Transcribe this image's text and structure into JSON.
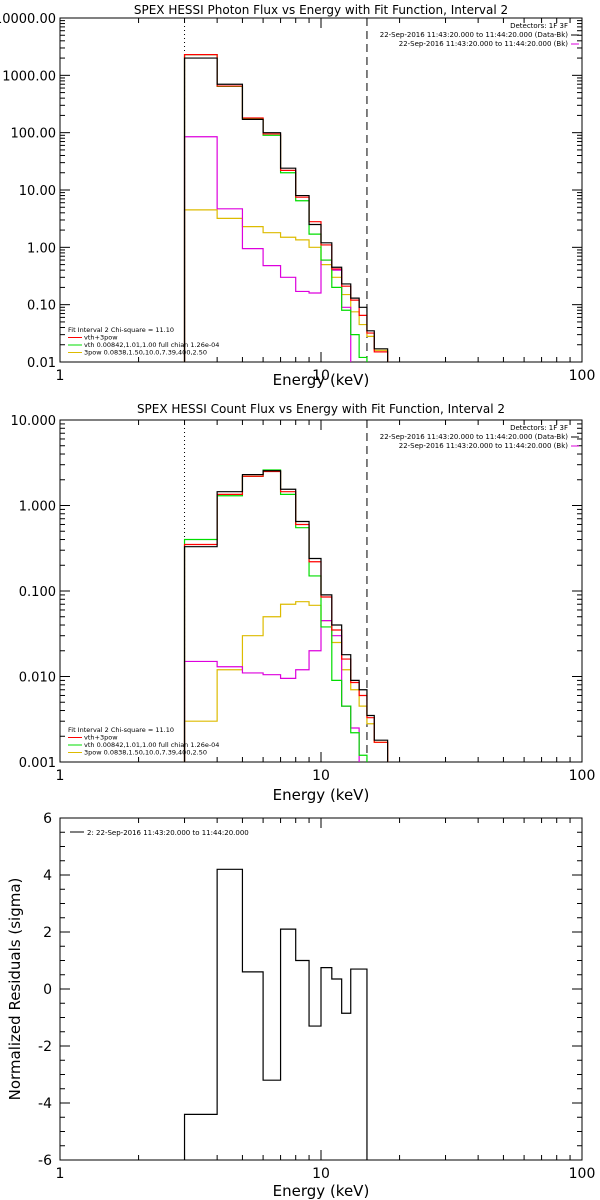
{
  "chart_data": [
    {
      "type": "line",
      "title": "SPEX HESSI Photon Flux vs Energy with Fit Function, Interval 2",
      "xlabel": "Energy (keV)",
      "ylabel": "",
      "x_scale": "log",
      "y_scale": "log",
      "xlim": [
        1,
        100
      ],
      "ylim": [
        0.01,
        10000
      ],
      "x_ticks": [
        "1",
        "10",
        "100"
      ],
      "y_ticks": [
        "0.01",
        "0.10",
        "1.00",
        "10.00",
        "100.00",
        "1000.00",
        "10000.00"
      ],
      "vlines": [
        {
          "x": 3.0,
          "style": "dotted"
        },
        {
          "x": 15.0,
          "style": "dashed"
        }
      ],
      "legend_top": [
        "Detectors: 1F 3F",
        "22-Sep-2016 11:43:20.000 to 11:44:20.000 (Data-Bk)",
        "22-Sep-2016 11:43:20.000 to 11:44:20.000 (Bk)"
      ],
      "legend_bottom": [
        "Fit Interval 2   Chi-square = 11.10",
        "vth+3pow",
        "vth 0.00842,1.01,1.00  full chian 1.26e-04",
        "3pow 0.0838,1.50,10.0,7.39,400,2.50"
      ],
      "colors": {
        "data": "#000000",
        "model": "#ff0000",
        "vth": "#00dd00",
        "pow": "#ddbb00",
        "bk": "#dd00dd"
      },
      "series": [
        {
          "name": "Data-Bk",
          "bins": [
            [
              3.0,
              4.0,
              2000
            ],
            [
              4.0,
              5.0,
              700
            ],
            [
              5.0,
              6.0,
              170
            ],
            [
              6.0,
              7.0,
              100
            ],
            [
              7.0,
              8.0,
              24
            ],
            [
              8.0,
              9.0,
              8
            ],
            [
              9.0,
              10.0,
              2.5
            ],
            [
              10.0,
              11.0,
              1.2
            ],
            [
              11.0,
              12.0,
              0.45
            ],
            [
              12.0,
              13.0,
              0.23
            ],
            [
              13.0,
              14.0,
              0.13
            ],
            [
              14.0,
              15.0,
              0.09
            ],
            [
              15.0,
              16.0,
              0.035
            ],
            [
              16.0,
              18.0,
              0.017
            ]
          ]
        },
        {
          "name": "vth+3pow",
          "bins": [
            [
              3.0,
              4.0,
              2300
            ],
            [
              4.0,
              5.0,
              650
            ],
            [
              5.0,
              6.0,
              180
            ],
            [
              6.0,
              7.0,
              95
            ],
            [
              7.0,
              8.0,
              22
            ],
            [
              8.0,
              9.0,
              7.5
            ],
            [
              9.0,
              10.0,
              2.8
            ],
            [
              10.0,
              11.0,
              1.1
            ],
            [
              11.0,
              12.0,
              0.42
            ],
            [
              12.0,
              13.0,
              0.21
            ],
            [
              13.0,
              14.0,
              0.12
            ],
            [
              14.0,
              15.0,
              0.065
            ],
            [
              15.0,
              16.0,
              0.032
            ],
            [
              16.0,
              18.0,
              0.015
            ]
          ]
        },
        {
          "name": "vth",
          "bins": [
            [
              3.0,
              4.0,
              2300
            ],
            [
              4.0,
              5.0,
              640
            ],
            [
              5.0,
              6.0,
              175
            ],
            [
              6.0,
              7.0,
              90
            ],
            [
              7.0,
              8.0,
              20
            ],
            [
              8.0,
              9.0,
              6.5
            ],
            [
              9.0,
              10.0,
              1.7
            ],
            [
              10.0,
              11.0,
              0.6
            ],
            [
              11.0,
              12.0,
              0.2
            ],
            [
              12.0,
              13.0,
              0.08
            ],
            [
              13.0,
              14.0,
              0.03
            ],
            [
              14.0,
              15.0,
              0.012
            ]
          ]
        },
        {
          "name": "3pow",
          "bins": [
            [
              3.0,
              4.0,
              4.5
            ],
            [
              4.0,
              5.0,
              3.2
            ],
            [
              5.0,
              6.0,
              2.3
            ],
            [
              6.0,
              7.0,
              1.8
            ],
            [
              7.0,
              8.0,
              1.5
            ],
            [
              8.0,
              9.0,
              1.35
            ],
            [
              9.0,
              10.0,
              1.0
            ],
            [
              10.0,
              11.0,
              0.5
            ],
            [
              11.0,
              12.0,
              0.3
            ],
            [
              12.0,
              13.0,
              0.15
            ],
            [
              13.0,
              14.0,
              0.075
            ],
            [
              14.0,
              15.0,
              0.045
            ],
            [
              15.0,
              16.0,
              0.028
            ],
            [
              16.0,
              18.0,
              0.016
            ]
          ]
        },
        {
          "name": "Bk",
          "bins": [
            [
              3.0,
              4.0,
              85
            ],
            [
              4.0,
              5.0,
              4.7
            ],
            [
              5.0,
              6.0,
              0.95
            ],
            [
              6.0,
              7.0,
              0.48
            ],
            [
              7.0,
              8.0,
              0.3
            ],
            [
              8.0,
              9.0,
              0.17
            ],
            [
              9.0,
              10.0,
              0.16
            ],
            [
              10.0,
              11.0,
              0.6
            ],
            [
              11.0,
              12.0,
              0.4
            ],
            [
              12.0,
              13.0,
              0.09
            ]
          ]
        }
      ]
    },
    {
      "type": "line",
      "title": "SPEX HESSI Count Flux vs Energy with Fit Function, Interval 2",
      "xlabel": "Energy (keV)",
      "ylabel": "",
      "x_scale": "log",
      "y_scale": "log",
      "xlim": [
        1,
        100
      ],
      "ylim": [
        0.001,
        10
      ],
      "x_ticks": [
        "1",
        "10",
        "100"
      ],
      "y_ticks": [
        "0.001",
        "0.010",
        "0.100",
        "1.000",
        "10.000"
      ],
      "vlines": [
        {
          "x": 3.0,
          "style": "dotted"
        },
        {
          "x": 15.0,
          "style": "dashed"
        }
      ],
      "legend_top": [
        "Detectors: 1F 3F",
        "22-Sep-2016 11:43:20.000 to 11:44:20.000 (Data-Bk)",
        "22-Sep-2016 11:43:20.000 to 11:44:20.000 (Bk)"
      ],
      "legend_bottom": [
        "Fit Interval 2   Chi-square = 11.10",
        "vth+3pow",
        "vth 0.00842,1.01,1.00  full chian 1.26e-04",
        "3pow 0.0838,1.50,10.0,7.39,400,2.50"
      ],
      "colors": {
        "data": "#000000",
        "model": "#ff0000",
        "vth": "#00dd00",
        "pow": "#ddbb00",
        "bk": "#dd00dd"
      },
      "series": [
        {
          "name": "Data-Bk",
          "bins": [
            [
              3.0,
              4.0,
              0.33
            ],
            [
              4.0,
              5.0,
              1.45
            ],
            [
              5.0,
              6.0,
              2.3
            ],
            [
              6.0,
              7.0,
              2.55
            ],
            [
              7.0,
              8.0,
              1.55
            ],
            [
              8.0,
              9.0,
              0.65
            ],
            [
              9.0,
              10.0,
              0.24
            ],
            [
              10.0,
              11.0,
              0.09
            ],
            [
              11.0,
              12.0,
              0.04
            ],
            [
              12.0,
              13.0,
              0.018
            ],
            [
              13.0,
              14.0,
              0.009
            ],
            [
              14.0,
              15.0,
              0.007
            ],
            [
              15.0,
              16.0,
              0.0035
            ],
            [
              16.0,
              18.0,
              0.0018
            ]
          ]
        },
        {
          "name": "vth+3pow",
          "bins": [
            [
              3.0,
              4.0,
              0.35
            ],
            [
              4.0,
              5.0,
              1.35
            ],
            [
              5.0,
              6.0,
              2.2
            ],
            [
              6.0,
              7.0,
              2.5
            ],
            [
              7.0,
              8.0,
              1.45
            ],
            [
              8.0,
              9.0,
              0.6
            ],
            [
              9.0,
              10.0,
              0.22
            ],
            [
              10.0,
              11.0,
              0.085
            ],
            [
              11.0,
              12.0,
              0.035
            ],
            [
              12.0,
              13.0,
              0.016
            ],
            [
              13.0,
              14.0,
              0.0085
            ],
            [
              14.0,
              15.0,
              0.006
            ],
            [
              15.0,
              16.0,
              0.0033
            ],
            [
              16.0,
              18.0,
              0.0017
            ]
          ]
        },
        {
          "name": "vth",
          "bins": [
            [
              3.0,
              4.0,
              0.4
            ],
            [
              4.0,
              5.0,
              1.3
            ],
            [
              5.0,
              6.0,
              2.2
            ],
            [
              6.0,
              7.0,
              2.6
            ],
            [
              7.0,
              8.0,
              1.35
            ],
            [
              8.0,
              9.0,
              0.55
            ],
            [
              9.0,
              10.0,
              0.15
            ],
            [
              10.0,
              11.0,
              0.038
            ],
            [
              11.0,
              12.0,
              0.009
            ],
            [
              12.0,
              13.0,
              0.0045
            ],
            [
              13.0,
              14.0,
              0.0022
            ],
            [
              14.0,
              15.0,
              0.0012
            ]
          ]
        },
        {
          "name": "3pow",
          "bins": [
            [
              3.0,
              4.0,
              0.003
            ],
            [
              4.0,
              5.0,
              0.012
            ],
            [
              5.0,
              6.0,
              0.03
            ],
            [
              6.0,
              7.0,
              0.05
            ],
            [
              7.0,
              8.0,
              0.07
            ],
            [
              8.0,
              9.0,
              0.075
            ],
            [
              9.0,
              10.0,
              0.068
            ],
            [
              10.0,
              11.0,
              0.045
            ],
            [
              11.0,
              12.0,
              0.025
            ],
            [
              12.0,
              13.0,
              0.012
            ],
            [
              13.0,
              14.0,
              0.007
            ],
            [
              14.0,
              15.0,
              0.0045
            ],
            [
              15.0,
              16.0,
              0.0028
            ],
            [
              16.0,
              18.0,
              0.0017
            ]
          ]
        },
        {
          "name": "Bk",
          "bins": [
            [
              3.0,
              4.0,
              0.015
            ],
            [
              4.0,
              5.0,
              0.013
            ],
            [
              5.0,
              6.0,
              0.011
            ],
            [
              6.0,
              7.0,
              0.0105
            ],
            [
              7.0,
              8.0,
              0.0095
            ],
            [
              8.0,
              9.0,
              0.012
            ],
            [
              9.0,
              10.0,
              0.02
            ],
            [
              10.0,
              11.0,
              0.045
            ],
            [
              11.0,
              12.0,
              0.03
            ],
            [
              12.0,
              13.0,
              0.0045
            ],
            [
              13.0,
              14.0,
              0.0025
            ]
          ]
        }
      ]
    },
    {
      "type": "line",
      "title": "",
      "xlabel": "Energy (keV)",
      "ylabel": "Normalized Residuals (sigma)",
      "x_scale": "log",
      "y_scale": "linear",
      "xlim": [
        1,
        100
      ],
      "ylim": [
        -6,
        6
      ],
      "x_ticks": [
        "1",
        "10",
        "100"
      ],
      "y_ticks": [
        "-6",
        "-4",
        "-2",
        "0",
        "2",
        "4",
        "6"
      ],
      "legend": [
        "2: 22-Sep-2016 11:43:20.000 to 11:44:20.000"
      ],
      "series": [
        {
          "name": "2: 22-Sep-2016 11:43:20.000 to 11:44:20.000",
          "bins": [
            [
              3.0,
              4.0,
              -4.4
            ],
            [
              4.0,
              5.0,
              4.2
            ],
            [
              5.0,
              6.0,
              0.6
            ],
            [
              6.0,
              7.0,
              -3.2
            ],
            [
              7.0,
              8.0,
              2.1
            ],
            [
              8.0,
              9.0,
              1.0
            ],
            [
              9.0,
              10.0,
              -1.3
            ],
            [
              10.0,
              11.0,
              0.75
            ],
            [
              11.0,
              12.0,
              0.35
            ],
            [
              12.0,
              13.0,
              -0.85
            ],
            [
              13.0,
              15.0,
              0.7
            ]
          ]
        }
      ]
    }
  ]
}
